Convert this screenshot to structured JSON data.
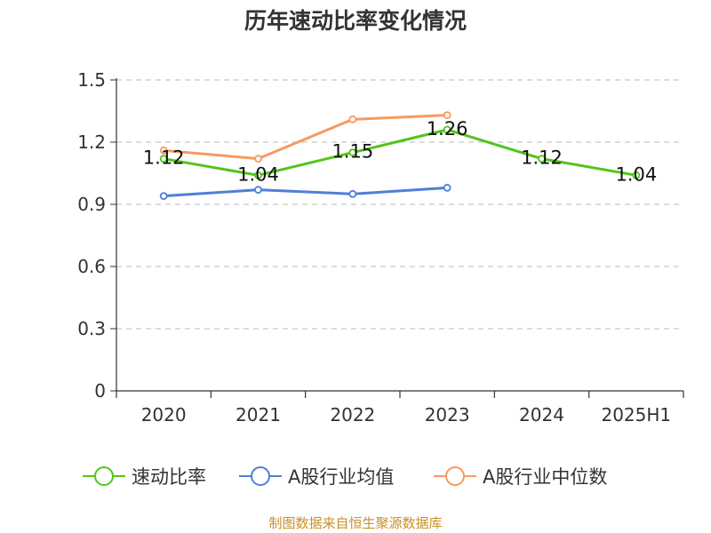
{
  "title": "历年速动比率变化情况",
  "source": "制图数据来自恒生聚源数据库",
  "chart_data": {
    "type": "line",
    "title": "历年速动比率变化情况",
    "categories": [
      "2020",
      "2021",
      "2022",
      "2023",
      "2024",
      "2025H1"
    ],
    "y_ticks": [
      "0",
      "0.3",
      "0.6",
      "0.9",
      "1.2",
      "1.5"
    ],
    "ylim": [
      0,
      1.5
    ],
    "grid": true,
    "legend_position": "bottom",
    "series": [
      {
        "name": "速动比率",
        "color": "#52c41a",
        "values": [
          1.12,
          1.04,
          1.15,
          1.26,
          1.12,
          1.04
        ],
        "labels": [
          "1.12",
          "1.04",
          "1.15",
          "1.26",
          "1.12",
          "1.04"
        ]
      },
      {
        "name": "A股行业均值",
        "color": "#4f7fdb",
        "values": [
          0.94,
          0.97,
          0.95,
          0.98,
          null,
          null
        ]
      },
      {
        "name": "A股行业中位数",
        "color": "#f79a61",
        "values": [
          1.16,
          1.12,
          1.31,
          1.33,
          null,
          null
        ]
      }
    ]
  }
}
